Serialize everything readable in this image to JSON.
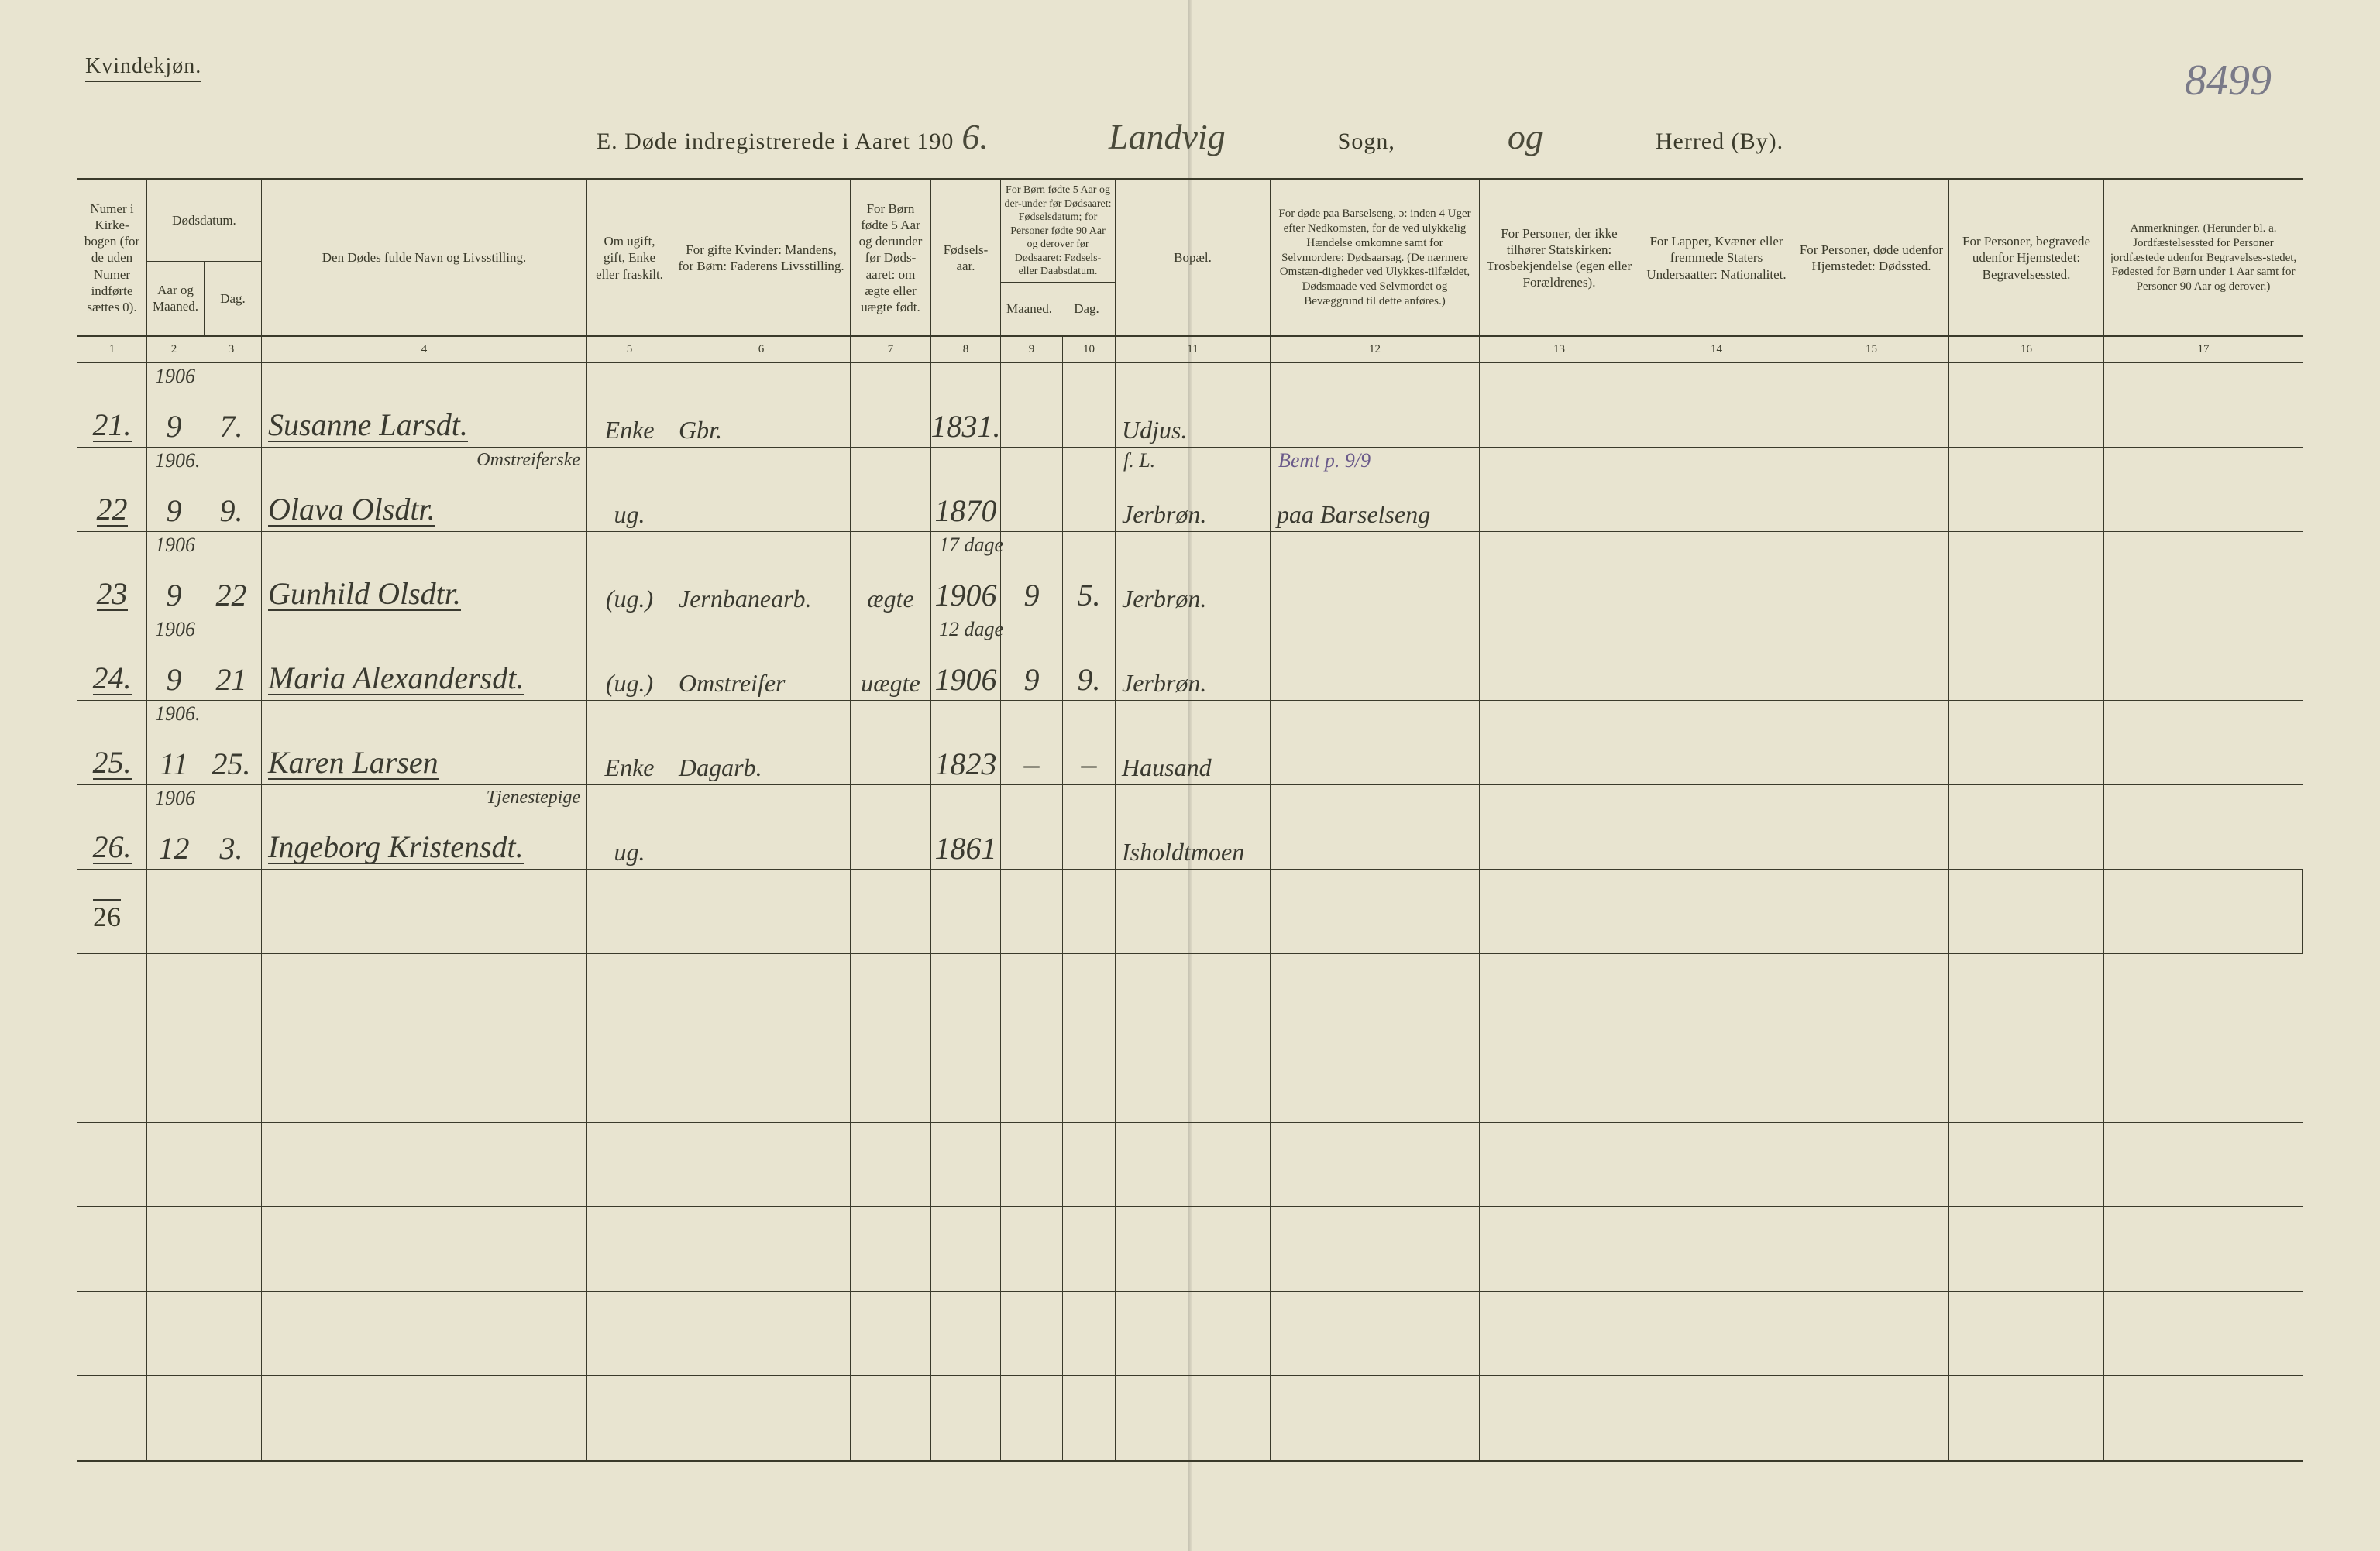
{
  "page": {
    "gender_label": "Kvindekjøn.",
    "page_number_script": "8499",
    "title_prefix": "E.   Døde indregistrerede i Aaret 190",
    "year_suffix_script": "6.",
    "parish_script": "Landvig",
    "sogn_label": "Sogn,",
    "og_script": "og",
    "herred_label": "Herred (By)."
  },
  "columns": {
    "c1": "Numer i Kirke-bogen (for de uden Numer indførte sættes 0).",
    "c2_top": "Dødsdatum.",
    "c2a": "Aar og Maaned.",
    "c2b": "Dag.",
    "c4": "Den Dødes fulde Navn og Livsstilling.",
    "c5": "Om ugift, gift, Enke eller fraskilt.",
    "c6": "For gifte Kvinder: Mandens, for Børn: Faderens Livsstilling.",
    "c7": "For Børn fødte 5 Aar og derunder før Døds-aaret: om ægte eller uægte født.",
    "c8": "Fødsels-aar.",
    "c9_top": "For Børn fødte 5 Aar og der-under før Dødsaaret: Fødselsdatum; for Personer fødte 90 Aar og derover før Dødsaaret: Fødsels- eller Daabsdatum.",
    "c9a": "Maaned.",
    "c9b": "Dag.",
    "c11": "Bopæl.",
    "c12": "For døde paa Barselseng, ɔ: inden 4 Uger efter Nedkomsten, for de ved ulykkelig Hændelse omkomne samt for Selvmordere: Dødsaarsag. (De nærmere Omstæn-digheder ved Ulykkes-tilfældet, Dødsmaade ved Selvmordet og Bevæggrund til dette anføres.)",
    "c13": "For Personer, der ikke tilhører Statskirken: Trosbekjendelse (egen eller Forældrenes).",
    "c14": "For Lapper, Kvæner eller fremmede Staters Undersaatter: Nationalitet.",
    "c15": "For Personer, døde udenfor Hjemstedet: Dødssted.",
    "c16": "For Personer, begravede udenfor Hjemstedet: Begravelsessted.",
    "c17": "Anmerkninger. (Herunder bl. a. Jordfæstelsessted for Personer jordfæstede udenfor Begravelses-stedet, Fødested for Børn under 1 Aar samt for Personer 90 Aar og derover.)"
  },
  "colnums": [
    "1",
    "2",
    "3",
    "4",
    "5",
    "6",
    "7",
    "8",
    "9",
    "10",
    "11",
    "12",
    "13",
    "14",
    "15",
    "16",
    "17"
  ],
  "rows": [
    {
      "no": "21.",
      "year_above": "1906",
      "month": "9",
      "day": "7.",
      "name": "Susanne Larsdt.",
      "civil": "Enke",
      "occ": "Gbr.",
      "legit": "",
      "birth": "1831.",
      "bm": "",
      "bd": "",
      "place": "Udjus.",
      "cause": "",
      "above_name": ""
    },
    {
      "no": "22",
      "year_above": "1906.",
      "month": "9",
      "day": "9.",
      "name": "Olava Olsdtr.",
      "civil": "ug.",
      "occ": "",
      "legit": "",
      "birth": "1870",
      "bm": "",
      "bd": "",
      "place": "Jerbrøn.",
      "cause": "paa Barselseng",
      "above_name": "Omstreiferske",
      "above_place": "f. L.",
      "above_cause": "Bemt p. 9/9"
    },
    {
      "no": "23",
      "year_above": "1906",
      "month": "9",
      "day": "22",
      "name": "Gunhild Olsdtr.",
      "civil": "(ug.)",
      "occ": "Jernbanearb.",
      "legit": "ægte",
      "birth": "1906",
      "bm": "9",
      "bd": "5.",
      "place": "Jerbrøn.",
      "cause": "",
      "above_birth": "17 dage"
    },
    {
      "no": "24.",
      "year_above": "1906",
      "month": "9",
      "day": "21",
      "name": "Maria Alexandersdt.",
      "civil": "(ug.)",
      "occ": "Omstreifer",
      "legit": "uægte",
      "birth": "1906",
      "bm": "9",
      "bd": "9.",
      "place": "Jerbrøn.",
      "cause": "",
      "above_birth": "12 dage"
    },
    {
      "no": "25.",
      "year_above": "1906.",
      "month": "11",
      "day": "25.",
      "name": "Karen Larsen",
      "civil": "Enke",
      "occ": "Dagarb.",
      "legit": "",
      "birth": "1823",
      "bm": "–",
      "bd": "–",
      "place": "Hausand",
      "cause": ""
    },
    {
      "no": "26.",
      "year_above": "1906",
      "month": "12",
      "day": "3.",
      "name": "Ingeborg Kristensdt.",
      "civil": "ug.",
      "occ": "",
      "legit": "",
      "birth": "1861",
      "bm": "",
      "bd": "",
      "place": "Isholdtmoen",
      "cause": "",
      "above_name": "Tjenestepige"
    }
  ],
  "tally": "26",
  "style": {
    "paper_bg": "#e8e4d0",
    "ink": "#3a3a2a",
    "script_ink": "#3a3a30",
    "purple_ink": "#6a5a8a",
    "pagenum_ink": "#7a7a88",
    "header_fontsize": 17,
    "body_fontsize": 40,
    "title_fontsize": 30,
    "rule_weight_heavy": 3,
    "rule_weight_light": 1
  }
}
